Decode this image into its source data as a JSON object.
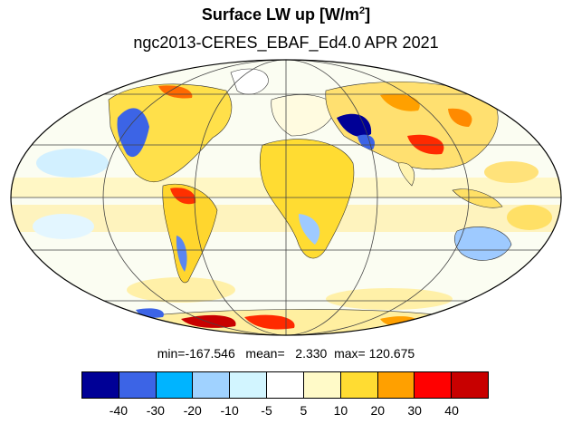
{
  "title": "Surface LW up [W/m",
  "title_sup": "2",
  "title_end": "]",
  "subtitle": "ngc2013-CERES_EBAF_Ed4.0  APR 2021",
  "stats": "min=-167.546   mean=   2.330  max= 120.675",
  "colorbar": {
    "colors": [
      "#000096",
      "#3c64e6",
      "#00b4ff",
      "#a0d2ff",
      "#d2f5ff",
      "#ffffff",
      "#fffac8",
      "#ffdc32",
      "#ffa000",
      "#ff0000",
      "#c80000"
    ],
    "labels": [
      "-40",
      "-30",
      "-20",
      "-10",
      "-5",
      "5",
      "10",
      "20",
      "30",
      "40"
    ]
  },
  "map": {
    "projection": "Mollweide",
    "grid": true,
    "field": "Surface LW up anomaly"
  }
}
